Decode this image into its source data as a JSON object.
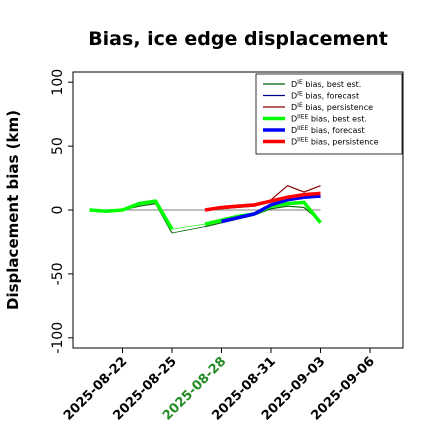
{
  "chart_data": {
    "type": "line",
    "title": "Bias, ice edge displacement",
    "ylabel": "Displacement bias (km)",
    "xlabel": "",
    "ylim": [
      -108,
      108
    ],
    "xlim": [
      "2025-08-19",
      "2025-09-08"
    ],
    "yticks": [
      -100,
      -50,
      0,
      50,
      100
    ],
    "xticks": [
      {
        "date": "2025-08-22",
        "label": "2025-08-22",
        "color": "#000000"
      },
      {
        "date": "2025-08-25",
        "label": "2025-08-25",
        "color": "#000000"
      },
      {
        "date": "2025-08-28",
        "label": "2025-08-28",
        "color": "#228B22"
      },
      {
        "date": "2025-08-31",
        "label": "2025-08-31",
        "color": "#000000"
      },
      {
        "date": "2025-09-03",
        "label": "2025-09-03",
        "color": "#000000"
      },
      {
        "date": "2025-09-06",
        "label": "2025-09-06",
        "color": "#000000"
      }
    ],
    "legend_position": "top-right",
    "series": [
      {
        "name": "D^IE bias, best est.",
        "color": "#006400",
        "width": 1.2,
        "points": [
          [
            "2025-08-20",
            0
          ],
          [
            "2025-08-21",
            -1
          ],
          [
            "2025-08-22",
            0
          ],
          [
            "2025-08-23",
            3
          ],
          [
            "2025-08-24",
            5
          ],
          [
            "2025-08-25",
            -18
          ]
        ]
      },
      {
        "name": "D^IE bias, best est.",
        "color": "#006400",
        "width": 1.2,
        "points": [
          [
            "2025-08-27",
            -13
          ],
          [
            "2025-08-28",
            -10
          ],
          [
            "2025-08-29",
            -7
          ],
          [
            "2025-08-30",
            -4
          ],
          [
            "2025-08-31",
            1
          ],
          [
            "2025-09-01",
            3
          ],
          [
            "2025-09-02",
            2
          ],
          [
            "2025-09-03",
            -9
          ]
        ]
      },
      {
        "name": "D^IE bias, forecast",
        "color": "#00008B",
        "width": 1.2,
        "points": [
          [
            "2025-08-28",
            -9
          ],
          [
            "2025-08-29",
            -6
          ],
          [
            "2025-08-30",
            -3
          ],
          [
            "2025-08-31",
            4
          ],
          [
            "2025-09-01",
            8
          ],
          [
            "2025-09-02",
            10
          ],
          [
            "2025-09-03",
            10
          ]
        ]
      },
      {
        "name": "D^IE bias, persistence",
        "color": "#8B0000",
        "width": 1.2,
        "points": [
          [
            "2025-08-27",
            0
          ],
          [
            "2025-08-28",
            1
          ],
          [
            "2025-08-29",
            2
          ],
          [
            "2025-08-30",
            3
          ],
          [
            "2025-08-31",
            8
          ],
          [
            "2025-09-01",
            19
          ],
          [
            "2025-09-02",
            14
          ],
          [
            "2025-09-03",
            19
          ]
        ]
      },
      {
        "name": "D^IIEE bias, best est.",
        "color": "#00FF00",
        "width": 3.5,
        "points": [
          [
            "2025-08-20",
            0
          ],
          [
            "2025-08-21",
            -1
          ],
          [
            "2025-08-22",
            0
          ],
          [
            "2025-08-23",
            5
          ],
          [
            "2025-08-24",
            7
          ],
          [
            "2025-08-25",
            -15
          ]
        ]
      },
      {
        "name": "D^IIEE bias, best est.",
        "color": "#00FF00",
        "width": 3.5,
        "points": [
          [
            "2025-08-27",
            -11
          ],
          [
            "2025-08-28",
            -8
          ],
          [
            "2025-08-29",
            -5
          ],
          [
            "2025-08-30",
            -3
          ],
          [
            "2025-08-31",
            3
          ],
          [
            "2025-09-01",
            5
          ],
          [
            "2025-09-02",
            6
          ],
          [
            "2025-09-03",
            -10
          ]
        ]
      },
      {
        "name": "D^IIEE bias, forecast",
        "color": "#0000FF",
        "width": 3.5,
        "points": [
          [
            "2025-08-28",
            -9
          ],
          [
            "2025-08-29",
            -6
          ],
          [
            "2025-08-30",
            -3
          ],
          [
            "2025-08-31",
            4
          ],
          [
            "2025-09-01",
            8
          ],
          [
            "2025-09-02",
            10
          ],
          [
            "2025-09-03",
            11
          ]
        ]
      },
      {
        "name": "D^IIEE bias, persistence",
        "color": "#FF0000",
        "width": 3.5,
        "points": [
          [
            "2025-08-27",
            0
          ],
          [
            "2025-08-28",
            2
          ],
          [
            "2025-08-29",
            3
          ],
          [
            "2025-08-30",
            4
          ],
          [
            "2025-08-31",
            7
          ],
          [
            "2025-09-01",
            10
          ],
          [
            "2025-09-02",
            12
          ],
          [
            "2025-09-03",
            13
          ]
        ]
      }
    ],
    "connectors": [
      {
        "color": "#006400",
        "width": 0.7,
        "points": [
          [
            "2025-08-25",
            -18
          ],
          [
            "2025-08-27",
            -13
          ]
        ]
      },
      {
        "color": "#00FF00",
        "width": 0.7,
        "points": [
          [
            "2025-08-25",
            -15
          ],
          [
            "2025-08-27",
            -11
          ]
        ]
      }
    ],
    "hlines": [
      {
        "color": "#555555",
        "width": 0.8,
        "y": 0,
        "from": "2025-08-20",
        "to": "2025-09-03"
      }
    ],
    "legend": [
      {
        "color": "#006400",
        "width": 1.2,
        "main": "D",
        "sup": "IE",
        "text": " bias, best est."
      },
      {
        "color": "#00008B",
        "width": 1.2,
        "main": "D",
        "sup": "IE",
        "text": " bias, forecast"
      },
      {
        "color": "#8B0000",
        "width": 1.2,
        "main": "D",
        "sup": "IE",
        "text": " bias, persistence"
      },
      {
        "color": "#00FF00",
        "width": 3.5,
        "main": "D",
        "sup": "IIEE",
        "text": " bias, best est."
      },
      {
        "color": "#0000FF",
        "width": 3.5,
        "main": "D",
        "sup": "IIEE",
        "text": " bias, forecast"
      },
      {
        "color": "#FF0000",
        "width": 3.5,
        "main": "D",
        "sup": "IIEE",
        "text": " bias, persistence"
      }
    ]
  }
}
